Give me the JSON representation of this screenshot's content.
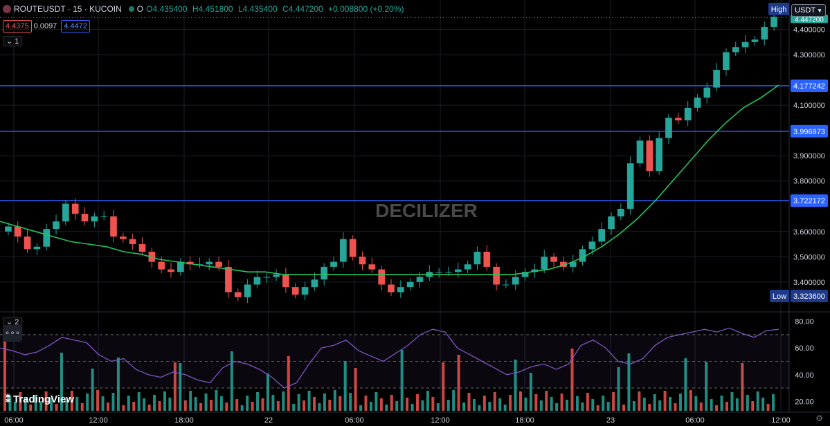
{
  "header": {
    "symbol": "ROUTEUSDT · 15 · KUCOIN",
    "open": "O4.435400",
    "high": "H4.451800",
    "low": "L4.435400",
    "close": "C4.447200",
    "change": "+0.008800 (+0.20%)"
  },
  "quote": {
    "bid": "4.4375",
    "spread": "0.0097",
    "ask": "4.4472"
  },
  "indicator_toggle_1": "1",
  "indicator_toggle_2": "2",
  "more_label": "∘∘∘",
  "watermark": "DECILIZER",
  "branding": "TradingView",
  "currency": "USDT",
  "colors": {
    "up": "#26a69a",
    "down": "#ef5350",
    "ma": "#22c55e",
    "rsi": "#7e57c2",
    "level": "#2962ff"
  },
  "chart_data": [
    {
      "type": "candlestick",
      "x_ticks": [
        "06:00",
        "12:00",
        "18:00",
        "22",
        "06:00",
        "12:00",
        "18:00",
        "23",
        "06:00",
        "12:00"
      ],
      "y_ticks": [
        "4.400000",
        "4.300000",
        "4.100000",
        "3.900000",
        "3.800000",
        "3.600000",
        "3.500000",
        "3.400000"
      ],
      "ylim": [
        3.29,
        4.44
      ],
      "levels": [
        {
          "value": 4.177242,
          "label": "4.177242"
        },
        {
          "value": 3.996973,
          "label": "3.996973"
        },
        {
          "value": 3.722172,
          "label": "3.722172"
        }
      ],
      "high_marker": {
        "label": "High",
        "value_label": "4.451800"
      },
      "low_marker": {
        "label": "Low",
        "value_label": "3.323600"
      },
      "last_price": {
        "value": 4.4472,
        "label": "4.447200"
      },
      "closes": [
        3.62,
        3.58,
        3.53,
        3.54,
        3.61,
        3.64,
        3.71,
        3.67,
        3.64,
        3.66,
        3.66,
        3.58,
        3.57,
        3.55,
        3.52,
        3.48,
        3.45,
        3.44,
        3.48,
        3.47,
        3.47,
        3.48,
        3.46,
        3.36,
        3.34,
        3.39,
        3.42,
        3.42,
        3.43,
        3.38,
        3.35,
        3.38,
        3.41,
        3.46,
        3.48,
        3.57,
        3.5,
        3.47,
        3.45,
        3.39,
        3.36,
        3.38,
        3.4,
        3.42,
        3.44,
        3.44,
        3.44,
        3.45,
        3.47,
        3.52,
        3.46,
        3.39,
        3.39,
        3.42,
        3.44,
        3.45,
        3.5,
        3.48,
        3.46,
        3.48,
        3.53,
        3.56,
        3.61,
        3.66,
        3.69,
        3.87,
        3.96,
        3.84,
        3.97,
        4.05,
        4.04,
        4.09,
        4.13,
        4.17,
        4.24,
        4.31,
        4.33,
        4.35,
        4.36,
        4.41,
        4.45
      ],
      "ma": [
        3.64,
        3.62,
        3.6,
        3.58,
        3.56,
        3.55,
        3.54,
        3.52,
        3.51,
        3.49,
        3.48,
        3.47,
        3.46,
        3.45,
        3.44,
        3.44,
        3.43,
        3.43,
        3.43,
        3.43,
        3.43,
        3.43,
        3.43,
        3.43,
        3.43,
        3.43,
        3.43,
        3.43,
        3.43,
        3.43,
        3.44,
        3.45,
        3.47,
        3.5,
        3.54,
        3.59,
        3.65,
        3.72,
        3.8,
        3.88,
        3.96,
        4.03,
        4.09,
        4.13,
        4.18
      ],
      "rsi": [
        60,
        58,
        55,
        57,
        62,
        68,
        66,
        64,
        55,
        50,
        52,
        44,
        40,
        38,
        42,
        40,
        36,
        34,
        45,
        50,
        48,
        44,
        38,
        30,
        34,
        48,
        60,
        62,
        66,
        58,
        54,
        50,
        56,
        62,
        70,
        74,
        72,
        60,
        55,
        50,
        45,
        40,
        42,
        46,
        48,
        44,
        48,
        62,
        66,
        60,
        50,
        48,
        52,
        62,
        68,
        70,
        72,
        74,
        72,
        75,
        71,
        68,
        73,
        74
      ],
      "rsi_ticks": [
        "80.00",
        "60.00",
        "40.00",
        "20.00"
      ]
    }
  ]
}
